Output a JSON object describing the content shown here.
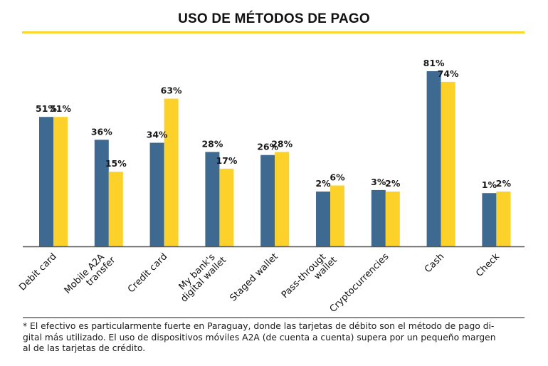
{
  "chart_data": {
    "type": "bar",
    "title": "USO DE MÉTODOS DE PAGO",
    "xlabel": "",
    "ylabel": "",
    "grid": false,
    "legend": "none",
    "categories": [
      [
        "Debit card"
      ],
      [
        "Mobile A2A",
        "transfer"
      ],
      [
        "Credit card"
      ],
      [
        "My bank's",
        "digital wallet"
      ],
      [
        "Staged wallet"
      ],
      [
        "Pass-througt",
        "wallet"
      ],
      [
        "Cryptocurrencies"
      ],
      [
        "Cash"
      ],
      [
        "Check"
      ]
    ],
    "series": [
      {
        "name": "series-1",
        "color": "#3e6a91",
        "values": [
          51,
          36,
          34,
          28,
          26,
          2,
          3,
          81,
          1
        ]
      },
      {
        "name": "series-2",
        "color": "#fcd22a",
        "values": [
          51,
          15,
          63,
          17,
          28,
          6,
          2,
          74,
          2
        ]
      }
    ],
    "value_suffix": "%"
  },
  "footnote": [
    "* El efectivo es particularmente fuerte en Paraguay, donde las tarjetas de débito son el método de pago di-",
    "gital más utilizado. El uso de dispositivos móviles A2A (de cuenta a cuenta) supera por un pequeño margen",
    "al de las tarjetas de crédito."
  ]
}
